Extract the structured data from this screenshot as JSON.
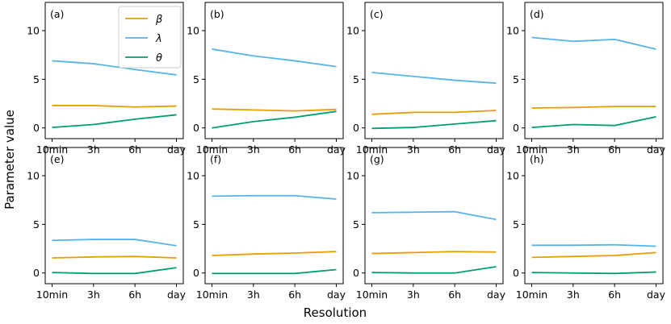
{
  "chart_data": {
    "type": "line",
    "layout": "2x4 small multiples",
    "xlabel": "Resolution",
    "ylabel": "Parameter value",
    "categories": [
      "10min",
      "3h",
      "6h",
      "day"
    ],
    "yticks": [
      0,
      5,
      10
    ],
    "ylim": [
      -1.1,
      12.9
    ],
    "grid": false,
    "legend": {
      "placement": "top-right of panel (a)",
      "entries": [
        {
          "key": "beta",
          "label": "β",
          "color": "#e69f00"
        },
        {
          "key": "lambda",
          "label": "λ",
          "color": "#56b4e9"
        },
        {
          "key": "theta",
          "label": "θ",
          "color": "#009e73"
        }
      ]
    },
    "panels": [
      {
        "label": "(a)",
        "series": {
          "beta": [
            2.3,
            2.3,
            2.15,
            2.25
          ],
          "lambda": [
            6.9,
            6.6,
            6.0,
            5.45
          ],
          "theta": [
            0.05,
            0.35,
            0.9,
            1.35
          ]
        }
      },
      {
        "label": "(b)",
        "series": {
          "beta": [
            1.95,
            1.85,
            1.75,
            1.9
          ],
          "lambda": [
            8.1,
            7.4,
            6.9,
            6.3
          ],
          "theta": [
            0.0,
            0.65,
            1.1,
            1.7
          ]
        }
      },
      {
        "label": "(c)",
        "series": {
          "beta": [
            1.4,
            1.6,
            1.6,
            1.8
          ],
          "lambda": [
            5.7,
            5.3,
            4.9,
            4.6
          ],
          "theta": [
            -0.05,
            0.05,
            0.4,
            0.75
          ]
        }
      },
      {
        "label": "(d)",
        "series": {
          "beta": [
            2.05,
            2.1,
            2.2,
            2.2
          ],
          "lambda": [
            9.3,
            8.9,
            9.1,
            8.1
          ],
          "theta": [
            0.05,
            0.35,
            0.25,
            1.15
          ]
        }
      },
      {
        "label": "(e)",
        "series": {
          "beta": [
            1.55,
            1.65,
            1.7,
            1.55
          ],
          "lambda": [
            3.35,
            3.45,
            3.45,
            2.8
          ],
          "theta": [
            0.05,
            -0.05,
            -0.05,
            0.55
          ]
        }
      },
      {
        "label": "(f)",
        "series": {
          "beta": [
            1.8,
            1.95,
            2.05,
            2.2
          ],
          "lambda": [
            7.9,
            7.95,
            7.95,
            7.6
          ],
          "theta": [
            -0.05,
            -0.05,
            -0.05,
            0.35
          ]
        }
      },
      {
        "label": "(g)",
        "series": {
          "beta": [
            2.0,
            2.1,
            2.2,
            2.15
          ],
          "lambda": [
            6.2,
            6.25,
            6.3,
            5.5
          ],
          "theta": [
            0.05,
            0.0,
            0.0,
            0.65
          ]
        }
      },
      {
        "label": "(h)",
        "series": {
          "beta": [
            1.6,
            1.7,
            1.8,
            2.1
          ],
          "lambda": [
            2.85,
            2.85,
            2.9,
            2.75
          ],
          "theta": [
            0.05,
            0.0,
            -0.05,
            0.1
          ]
        }
      }
    ]
  }
}
